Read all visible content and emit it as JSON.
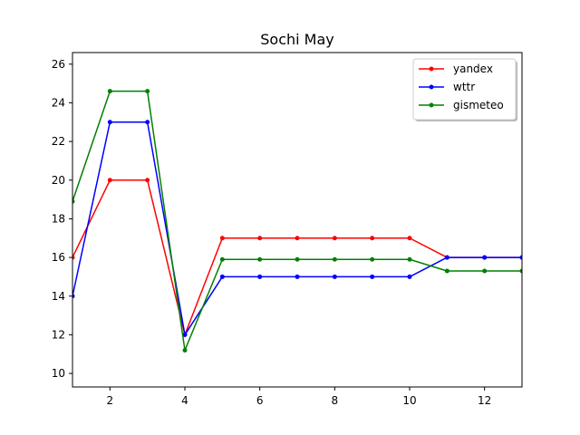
{
  "chart_data": {
    "type": "line",
    "title": "Sochi May",
    "xlabel": "",
    "ylabel": "",
    "xlim": [
      1,
      13
    ],
    "ylim": [
      9.3,
      26.6
    ],
    "xticks": [
      2,
      4,
      6,
      8,
      10,
      12
    ],
    "yticks": [
      10,
      12,
      14,
      16,
      18,
      20,
      22,
      24,
      26
    ],
    "legend_position": "top-right",
    "x": [
      1,
      2,
      3,
      4,
      5,
      6,
      7,
      8,
      9,
      10,
      11,
      12,
      13
    ],
    "series": [
      {
        "name": "yandex",
        "color": "#ff0000",
        "values": [
          16,
          20,
          20,
          12,
          17,
          17,
          17,
          17,
          17,
          17,
          16,
          16,
          16
        ]
      },
      {
        "name": "wttr",
        "color": "#0000ff",
        "values": [
          14,
          23,
          23,
          12,
          15,
          15,
          15,
          15,
          15,
          15,
          16,
          16,
          16
        ]
      },
      {
        "name": "gismeteo",
        "color": "#008000",
        "values": [
          18.9,
          24.6,
          24.6,
          11.2,
          15.9,
          15.9,
          15.9,
          15.9,
          15.9,
          15.9,
          15.3,
          15.3,
          15.3
        ]
      }
    ]
  }
}
